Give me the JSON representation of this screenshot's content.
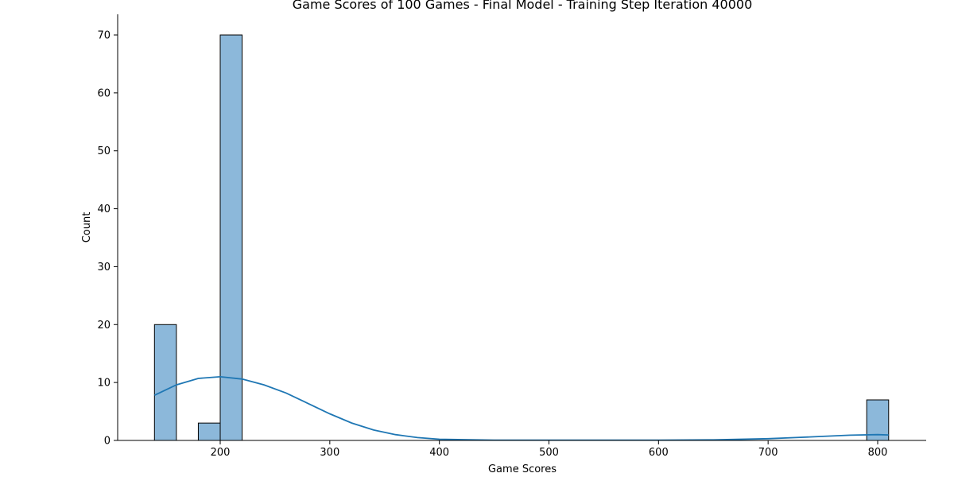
{
  "chart_data": {
    "type": "bar",
    "subtype": "histogram-with-kde",
    "title": "Game Scores of 100 Games - Final Model - Training Step Iteration 40000",
    "xlabel": "Game Scores",
    "ylabel": "Count",
    "xlim": [
      140,
      810
    ],
    "ylim": [
      0,
      73.5
    ],
    "xticks": [
      200,
      300,
      400,
      500,
      600,
      700,
      800
    ],
    "yticks": [
      0,
      10,
      20,
      30,
      40,
      50,
      60,
      70
    ],
    "bar_color": "#8cb8da",
    "edge_color": "#000000",
    "line_color": "#1f77b4",
    "bins": [
      {
        "x0": 140,
        "x1": 160,
        "count": 20
      },
      {
        "x0": 180,
        "x1": 200,
        "count": 3
      },
      {
        "x0": 200,
        "x1": 220,
        "count": 70
      },
      {
        "x0": 790,
        "x1": 810,
        "count": 7
      }
    ],
    "kde": {
      "x": [
        140,
        160,
        180,
        200,
        220,
        240,
        260,
        280,
        300,
        320,
        340,
        360,
        380,
        400,
        450,
        500,
        550,
        600,
        650,
        700,
        725,
        750,
        775,
        800,
        810
      ],
      "y": [
        7.8,
        9.6,
        10.7,
        11.0,
        10.6,
        9.6,
        8.2,
        6.4,
        4.6,
        3.0,
        1.8,
        1.0,
        0.5,
        0.2,
        0.05,
        0.05,
        0.05,
        0.05,
        0.1,
        0.3,
        0.5,
        0.7,
        0.9,
        1.0,
        0.95
      ]
    },
    "grid": false,
    "legend": "none"
  }
}
